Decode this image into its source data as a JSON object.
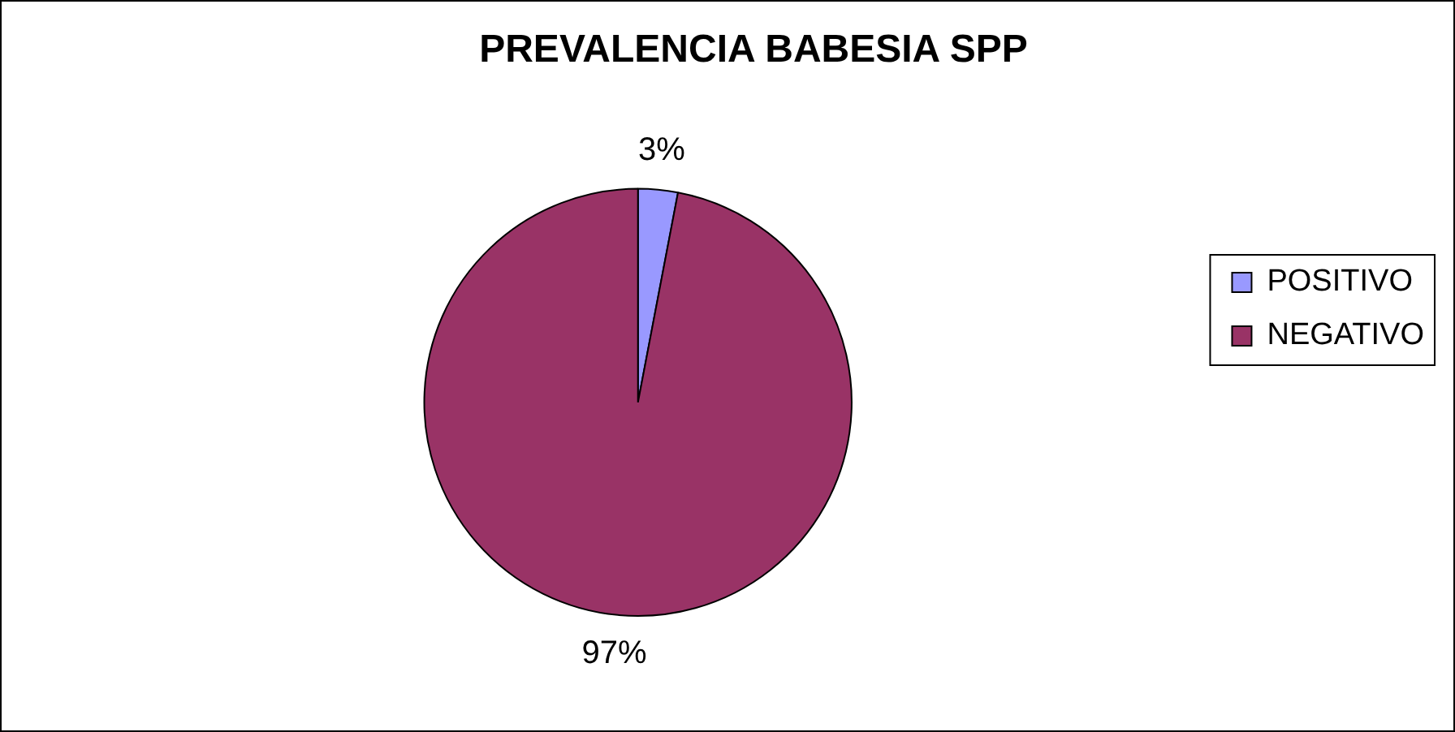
{
  "chart_data": {
    "type": "pie",
    "title": "PREVALENCIA BABESIA SPP",
    "categories": [
      "POSITIVO",
      "NEGATIVO"
    ],
    "values": [
      3,
      97
    ],
    "colors": [
      "#9999ff",
      "#993366"
    ],
    "value_labels": [
      "3%",
      "97%"
    ],
    "legend": "right"
  }
}
